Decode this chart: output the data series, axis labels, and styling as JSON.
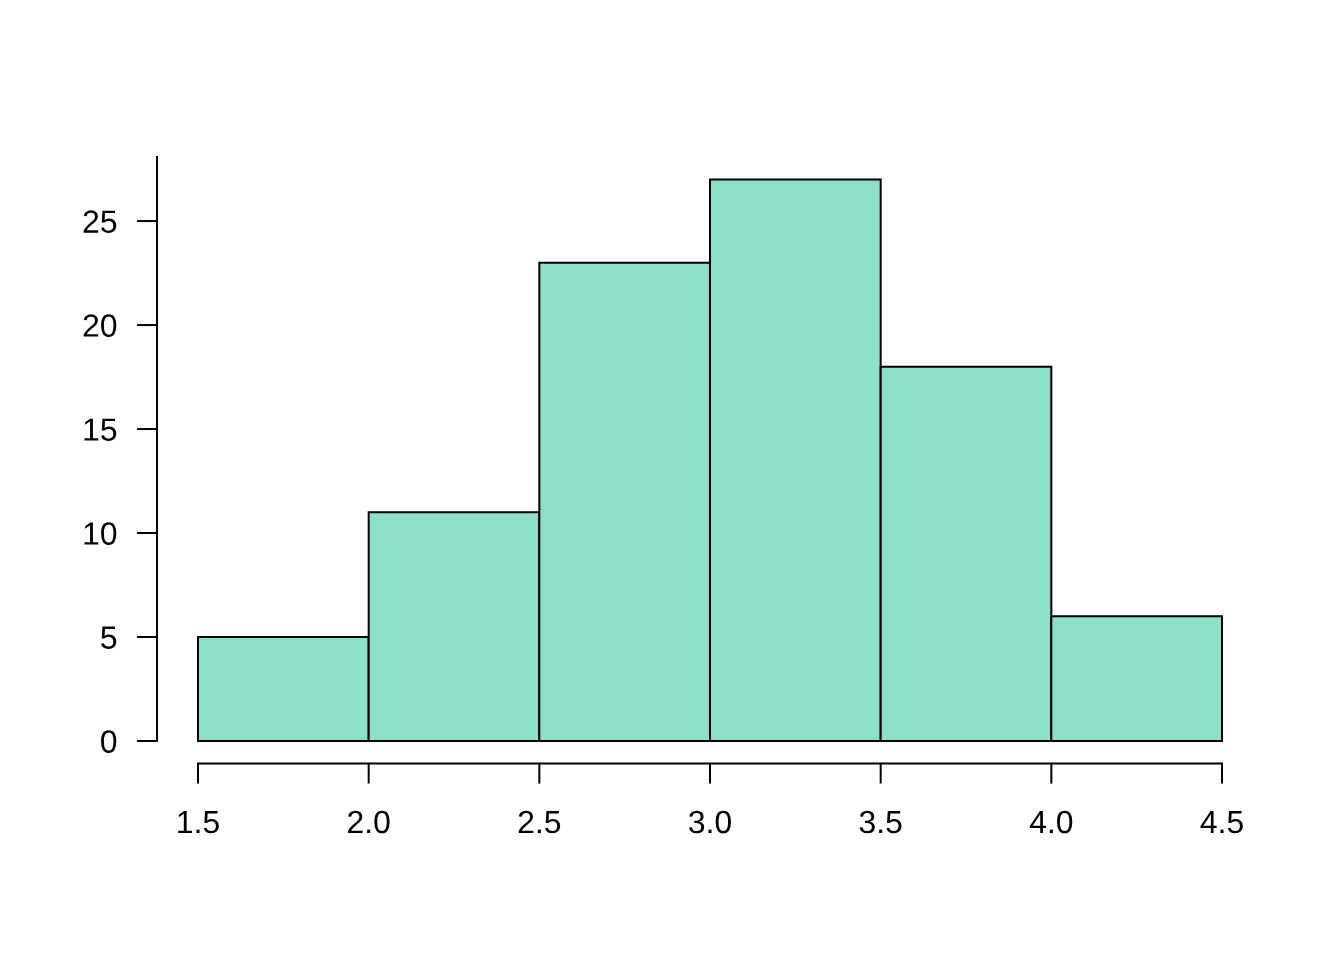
{
  "chart_data": {
    "type": "histogram",
    "bins": [
      1.5,
      2,
      2.5,
      3,
      3.5,
      4,
      4.5
    ],
    "values": [
      5,
      11,
      23,
      27,
      18,
      6
    ],
    "color": "#8ce0c9",
    "xlim": [
      1.5,
      4.5
    ],
    "ylim": [
      0,
      28.08
    ],
    "xticks": [
      1.5,
      {
        "value": 2,
        "label": "2.0"
      },
      2.5,
      {
        "value": 3,
        "label": "3.0"
      },
      3.5,
      {
        "value": 4,
        "label": "4.0"
      },
      4.5
    ],
    "yticks": [
      0,
      5,
      10,
      15,
      20,
      25
    ],
    "grid": false
  }
}
